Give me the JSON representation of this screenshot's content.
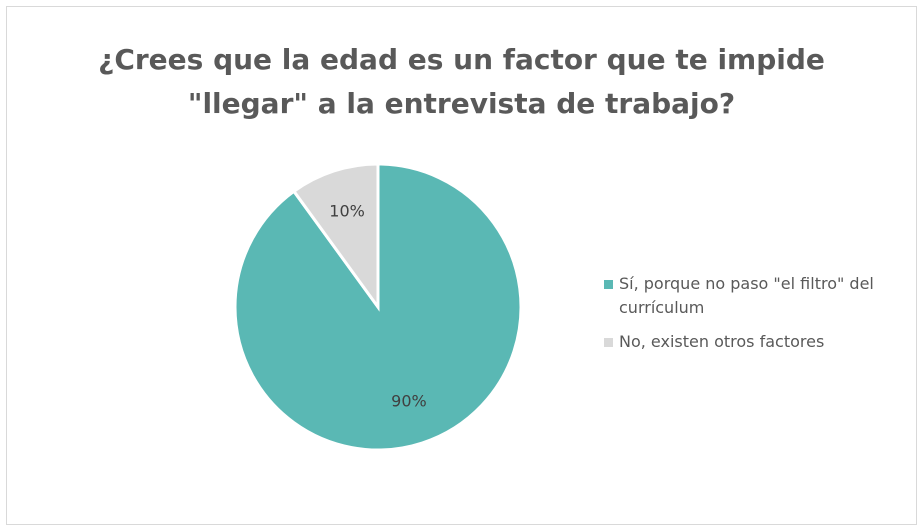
{
  "chart_data": {
    "type": "pie",
    "title": "¿Crees que la edad es un factor que te impide \"llegar\" a la entrevista de trabajo?",
    "categories": [
      "Sí, porque no paso \"el filtro\" del currículum",
      "No, existen otros factores"
    ],
    "values": [
      90,
      10
    ],
    "value_labels": [
      "90%",
      "10%"
    ],
    "colors": [
      "#5ab8b4",
      "#d9d9d9"
    ],
    "legend": "right"
  }
}
